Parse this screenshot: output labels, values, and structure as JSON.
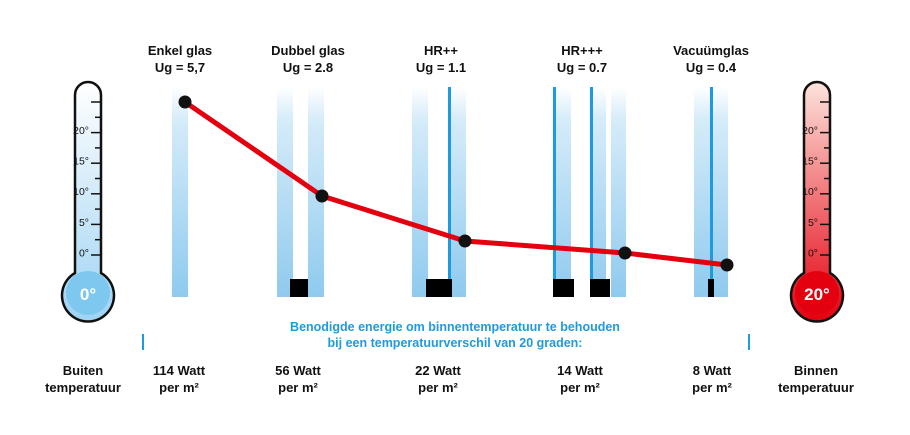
{
  "glass_types": [
    {
      "name": "Enkel glas",
      "ug": "Ug = 5,7",
      "watt": "114 Watt",
      "unit": "per m²"
    },
    {
      "name": "Dubbel glas",
      "ug": "Ug = 2.8",
      "watt": "56 Watt",
      "unit": "per m²"
    },
    {
      "name": "HR++",
      "ug": "Ug = 1.1",
      "watt": "22 Watt",
      "unit": "per m²"
    },
    {
      "name": "HR+++",
      "ug": "Ug = 0.7",
      "watt": "14 Watt",
      "unit": "per m²"
    },
    {
      "name": "Vacuümglas",
      "ug": "Ug = 0.4",
      "watt": "8 Watt",
      "unit": "per m²"
    }
  ],
  "left_thermometer": {
    "reading": "0°",
    "label_line1": "Buiten",
    "label_line2": "temperatuur",
    "color": "#7ec8f0"
  },
  "right_thermometer": {
    "reading": "20°",
    "label_line1": "Binnen",
    "label_line2": "temperatuur",
    "color": "#e3000f"
  },
  "scale_labels": [
    "20°",
    "15°",
    "10°",
    "5°",
    "0°"
  ],
  "energy_note": {
    "line1": "Benodigde energie om binnentemperatuur te behouden",
    "line2": "bij een temperatuurverschil van 20 graden:"
  },
  "colors": {
    "accent": "#1c9be0",
    "line": "#e3000f",
    "pane": "#b3dcf3",
    "spacer": "#000000"
  }
}
